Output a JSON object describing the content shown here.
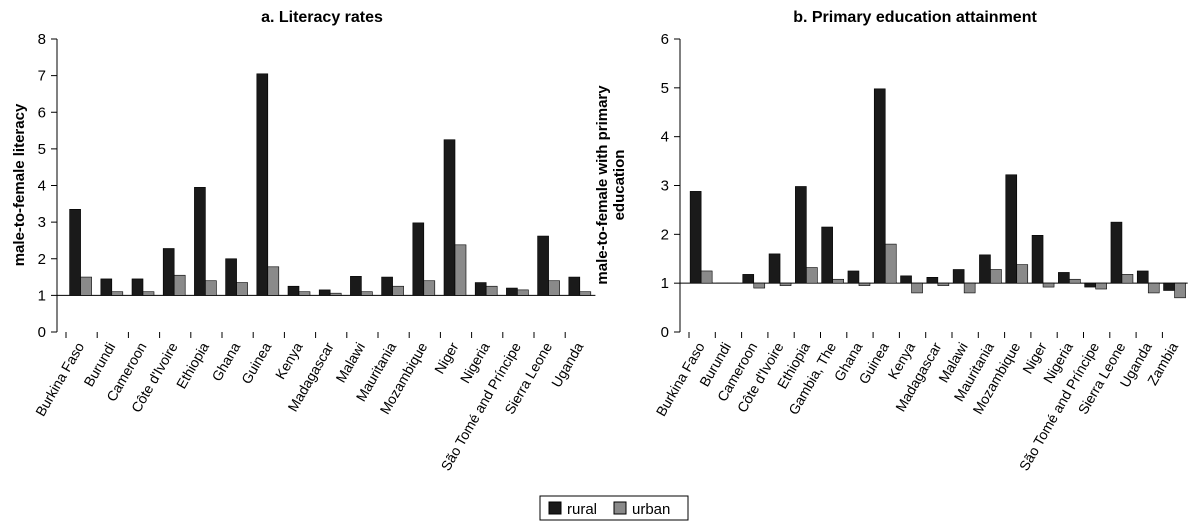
{
  "chart_data": [
    {
      "type": "bar",
      "title": "a. Literacy rates",
      "ylabel": "male-to-female literacy",
      "xlabel": "",
      "ylim": [
        0,
        8
      ],
      "yticks": [
        0,
        1,
        2,
        3,
        4,
        5,
        6,
        7,
        8
      ],
      "baseline": 1,
      "categories": [
        "Burkina Faso",
        "Burundi",
        "Cameroon",
        "Côte d'Ivoire",
        "Ethiopia",
        "Ghana",
        "Guinea",
        "Kenya",
        "Madagascar",
        "Malawi",
        "Mauritania",
        "Mozambique",
        "Niger",
        "Nigeria",
        "São Tomé and Príncipe",
        "Sierra Leone",
        "Uganda"
      ],
      "series": [
        {
          "name": "rural",
          "color": "#1a1a1a",
          "values": [
            3.35,
            1.45,
            1.45,
            2.28,
            3.95,
            2.0,
            7.05,
            1.25,
            1.15,
            1.52,
            1.5,
            2.98,
            5.25,
            1.35,
            1.2,
            2.62,
            1.5
          ]
        },
        {
          "name": "urban",
          "color": "#8a8a8a",
          "values": [
            1.5,
            1.1,
            1.1,
            1.55,
            1.4,
            1.35,
            1.78,
            1.1,
            1.06,
            1.1,
            1.25,
            1.4,
            2.38,
            1.25,
            1.15,
            1.4,
            1.1
          ]
        }
      ],
      "grid": false
    },
    {
      "type": "bar",
      "title": "b. Primary education attainment",
      "ylabel": "male-to-female with primary education",
      "xlabel": "",
      "ylim": [
        0,
        6
      ],
      "yticks": [
        0,
        1,
        2,
        3,
        4,
        5,
        6
      ],
      "baseline": 1,
      "categories": [
        "Burkina Faso",
        "Burundi",
        "Cameroon",
        "Côte d'Ivoire",
        "Ethiopia",
        "Gambia, The",
        "Ghana",
        "Guinea",
        "Kenya",
        "Madagascar",
        "Malawi",
        "Mauritania",
        "Mozambique",
        "Niger",
        "Nigeria",
        "São Tomé and Príncipe",
        "Sierra Leone",
        "Uganda",
        "Zambia"
      ],
      "series": [
        {
          "name": "rural",
          "color": "#1a1a1a",
          "values": [
            2.88,
            1.0,
            1.18,
            1.6,
            2.98,
            2.15,
            1.25,
            4.98,
            1.15,
            1.12,
            1.28,
            1.58,
            3.22,
            1.98,
            1.22,
            0.92,
            2.25,
            1.25,
            0.85
          ]
        },
        {
          "name": "urban",
          "color": "#8a8a8a",
          "values": [
            1.25,
            1.0,
            0.9,
            0.95,
            1.32,
            1.08,
            0.95,
            1.8,
            0.8,
            0.95,
            0.8,
            1.28,
            1.38,
            0.92,
            1.08,
            0.88,
            1.18,
            0.8,
            0.7
          ]
        }
      ],
      "grid": false
    }
  ],
  "legend": {
    "position": "bottom-center",
    "items": [
      {
        "label": "rural",
        "color": "#1a1a1a"
      },
      {
        "label": "urban",
        "color": "#8a8a8a"
      }
    ]
  }
}
